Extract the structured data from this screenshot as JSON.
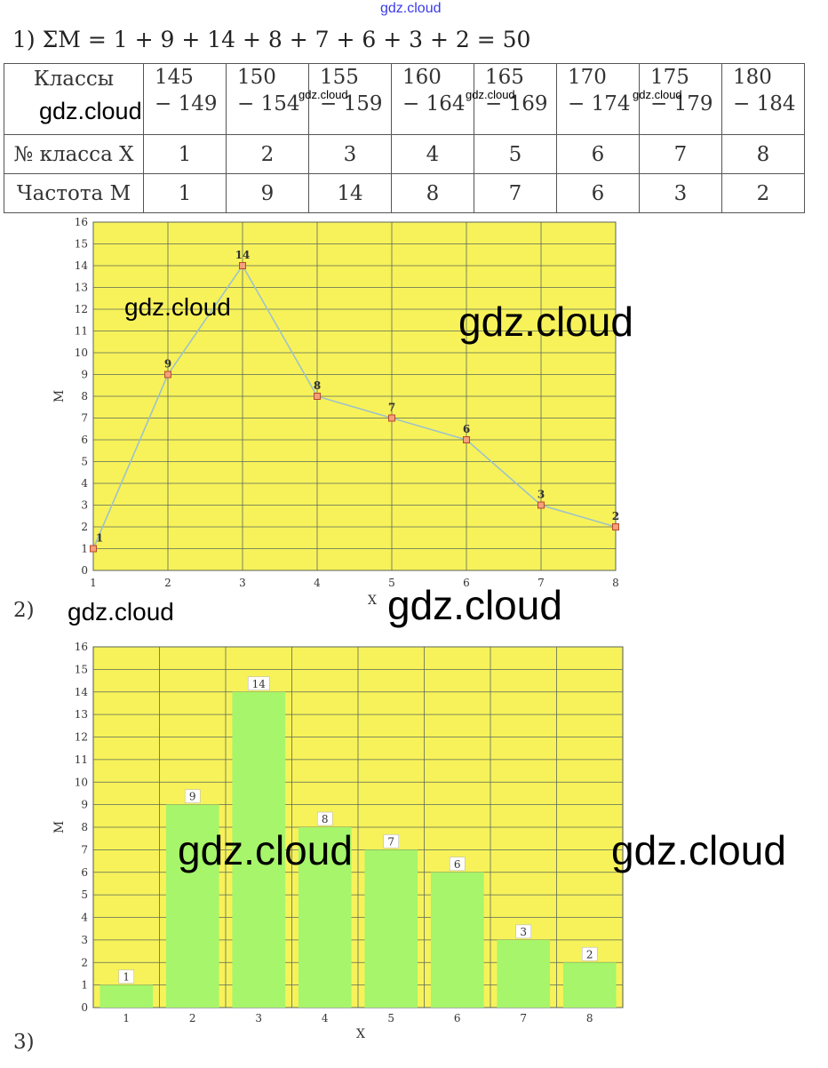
{
  "watermarks": {
    "top": "gdz.cloud",
    "text": "gdz.cloud"
  },
  "step1": {
    "label": "1)",
    "formula": "ΣM = 1 + 9 + 14 + 8 + 7 + 6 + 3 + 2 = 50"
  },
  "table": {
    "row_labels": [
      "Классы",
      "№ класса X",
      "Частота M"
    ],
    "classes": [
      {
        "from": "145",
        "to": "− 149"
      },
      {
        "from": "150",
        "to": "− 154"
      },
      {
        "from": "155",
        "to": "− 159"
      },
      {
        "from": "160",
        "to": "− 164"
      },
      {
        "from": "165",
        "to": "− 169"
      },
      {
        "from": "170",
        "to": "− 174"
      },
      {
        "from": "175",
        "to": "− 179"
      },
      {
        "from": "180",
        "to": "− 184"
      }
    ],
    "class_numbers": [
      "1",
      "2",
      "3",
      "4",
      "5",
      "6",
      "7",
      "8"
    ],
    "frequencies": [
      "1",
      "9",
      "14",
      "8",
      "7",
      "6",
      "3",
      "2"
    ]
  },
  "step2": {
    "label": "2)"
  },
  "step3": {
    "label": "3)"
  },
  "colors": {
    "plot_background": "#f7f25a",
    "line": "#9ec2c8",
    "marker": "#f4a07a",
    "bar": "#a6f56a"
  },
  "chart_data": [
    {
      "type": "line",
      "x": [
        1,
        2,
        3,
        4,
        5,
        6,
        7,
        8
      ],
      "y": [
        1,
        9,
        14,
        8,
        7,
        6,
        3,
        2
      ],
      "data_labels": [
        "1",
        "9",
        "14",
        "8",
        "7",
        "6",
        "3",
        "2"
      ],
      "xlabel": "X",
      "ylabel": "M",
      "xlim": [
        1,
        8
      ],
      "ylim": [
        0,
        16
      ],
      "x_ticks": [
        "1",
        "2",
        "3",
        "4",
        "5",
        "6",
        "7",
        "8"
      ],
      "y_ticks": [
        "0",
        "1",
        "2",
        "3",
        "4",
        "5",
        "6",
        "7",
        "8",
        "9",
        "10",
        "11",
        "12",
        "13",
        "14",
        "15",
        "16"
      ],
      "grid": true
    },
    {
      "type": "bar",
      "categories": [
        "1",
        "2",
        "3",
        "4",
        "5",
        "6",
        "7",
        "8"
      ],
      "values": [
        1,
        9,
        14,
        8,
        7,
        6,
        3,
        2
      ],
      "data_labels": [
        "1",
        "9",
        "14",
        "8",
        "7",
        "6",
        "3",
        "2"
      ],
      "xlabel": "X",
      "ylabel": "M",
      "ylim": [
        0,
        16
      ],
      "y_ticks": [
        "0",
        "1",
        "2",
        "3",
        "4",
        "5",
        "6",
        "7",
        "8",
        "9",
        "10",
        "11",
        "12",
        "13",
        "14",
        "15",
        "16"
      ],
      "grid": true
    }
  ]
}
